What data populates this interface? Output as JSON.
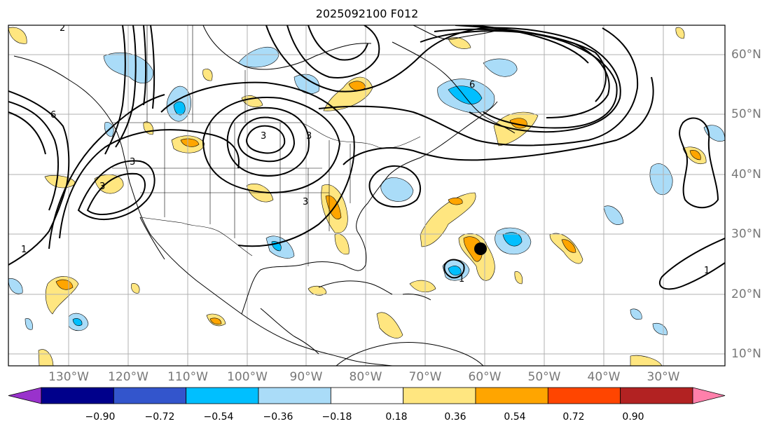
{
  "title": "2025092100 F012",
  "lon_labels": [
    "130°W",
    "120°W",
    "110°W",
    "100°W",
    "90°W",
    "80°W",
    "70°W",
    "60°W",
    "50°W",
    "40°W",
    "30°W"
  ],
  "lat_labels": [
    "60°N",
    "50°N",
    "40°N",
    "30°N",
    "20°N",
    "10°N"
  ],
  "contour_labels": [
    "6",
    "1",
    "3",
    "3",
    "3",
    "6",
    "3",
    "1",
    "1",
    "2",
    "3"
  ],
  "colorbar": {
    "colors": [
      "#9932cc",
      "#00008b",
      "#3355cc",
      "#00bfff",
      "#aadcf8",
      "#ffffff",
      "#ffe680",
      "#ffa500",
      "#ff4500",
      "#b22222",
      "#ff80ab"
    ],
    "tick_labels": [
      "−0.90",
      "−0.72",
      "−0.54",
      "−0.36",
      "−0.18",
      "0.18",
      "0.36",
      "0.54",
      "0.72",
      "0.90"
    ]
  },
  "storm_marker": {
    "lon": -60,
    "lat": 27.5
  }
}
